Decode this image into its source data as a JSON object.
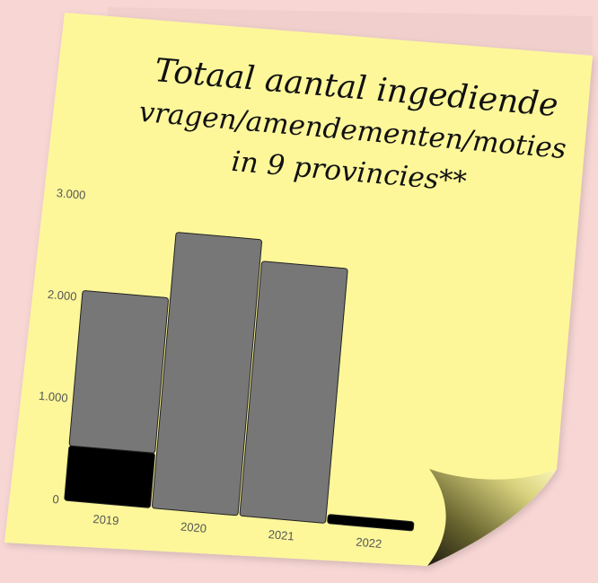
{
  "title_lines": [
    "Totaal aantal ingediende",
    "vragen/amendementen/moties",
    "in 9 provincies**"
  ],
  "chart_data": {
    "type": "bar",
    "stacked": true,
    "categories": [
      "2019",
      "2020",
      "2021",
      "2022"
    ],
    "series": [
      {
        "color": "#000000",
        "values": [
          540,
          0,
          0,
          90
        ]
      },
      {
        "color": "#777777",
        "values": [
          1530,
          2720,
          2510,
          0
        ]
      }
    ],
    "title": "Totaal aantal ingediende vragen/amendementen/moties in 9 provincies**",
    "ytick_labels": [
      "0",
      "1.000",
      "2.000",
      "3.000"
    ],
    "ytick_values": [
      0,
      1000,
      2000,
      3000
    ],
    "ylim": [
      0,
      3000
    ],
    "grid": false,
    "legend": "none"
  },
  "colors": {
    "background": "#f7d6d4",
    "note": "#fdf79a",
    "curl": "#e6e28a"
  }
}
